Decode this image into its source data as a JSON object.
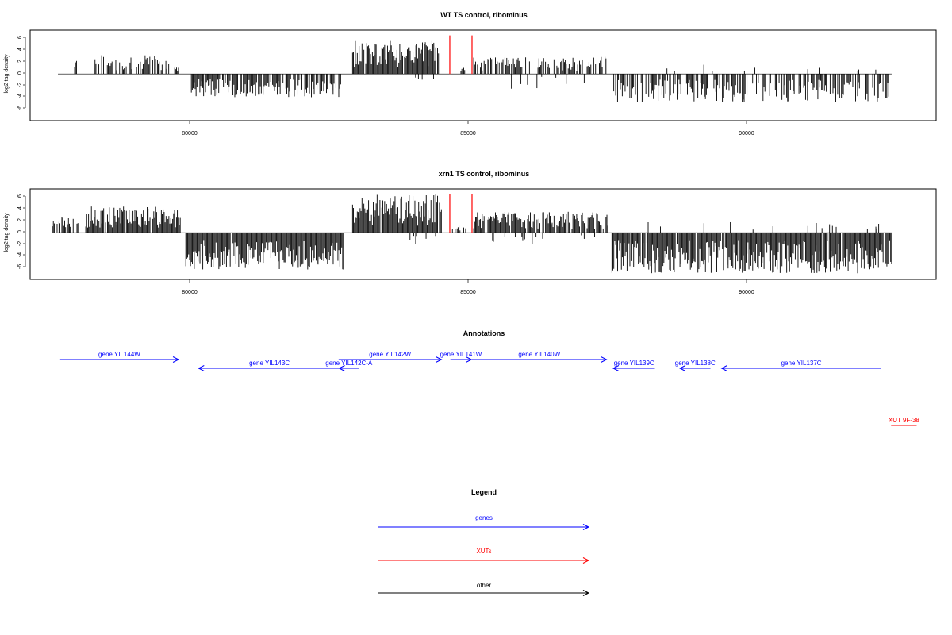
{
  "panels": [
    {
      "title": "WT TS control, ribominus",
      "ylabel": "log2 tag density",
      "xlim": [
        77500,
        93800
      ],
      "ylim": [
        -8,
        7.5
      ],
      "yticks": [
        "6",
        "4",
        "2",
        "0",
        "-2",
        "-4",
        "-6"
      ],
      "xticks": [
        "80000",
        "85000",
        "90000"
      ]
    },
    {
      "title": "xrn1 TS control, ribominus",
      "ylabel": "log2 tag density",
      "xlim": [
        77500,
        93800
      ],
      "ylim": [
        -8,
        7.5
      ],
      "yticks": [
        "6",
        "4",
        "2",
        "0",
        "-2",
        "-4",
        "-6"
      ],
      "xticks": [
        "80000",
        "85000",
        "90000"
      ]
    }
  ],
  "annotations": {
    "title": "Annotations",
    "features": [
      {
        "label": "gene YIL144W",
        "start": 78040,
        "end": 80170,
        "strand": "+",
        "row": 0,
        "color": "#0000ff"
      },
      {
        "label": "gene YIL143C",
        "start": 80530,
        "end": 83080,
        "strand": "-",
        "row": 1,
        "color": "#0000ff"
      },
      {
        "label": "gene YIL142C-A",
        "start": 83060,
        "end": 83410,
        "strand": "-",
        "row": 1,
        "color": "#0000ff"
      },
      {
        "label": "gene YIL142W",
        "start": 83050,
        "end": 84900,
        "strand": "+",
        "row": 0,
        "color": "#0000ff"
      },
      {
        "label": "gene YIL141W",
        "start": 85060,
        "end": 85440,
        "strand": "+",
        "row": 0,
        "color": "#0000ff"
      },
      {
        "label": "gene YIL140W",
        "start": 85450,
        "end": 87870,
        "strand": "+",
        "row": 0,
        "color": "#0000ff"
      },
      {
        "label": "gene YIL139C",
        "start": 87990,
        "end": 88740,
        "strand": "-",
        "row": 1,
        "color": "#0000ff"
      },
      {
        "label": "gene YIL138C",
        "start": 89190,
        "end": 89740,
        "strand": "-",
        "row": 1,
        "color": "#0000ff"
      },
      {
        "label": "gene YIL137C",
        "start": 89940,
        "end": 92810,
        "strand": "-",
        "row": 1,
        "color": "#0000ff"
      },
      {
        "label": "XUT 9F-38",
        "start": 92990,
        "end": 93450,
        "strand": "none",
        "row": 2,
        "color": "#ff0000"
      }
    ]
  },
  "legend": {
    "title": "Legend",
    "items": [
      {
        "label": "genes",
        "color": "#0000ff"
      },
      {
        "label": "XUTs",
        "color": "#ff0000"
      },
      {
        "label": "other",
        "color": "#000000"
      }
    ]
  },
  "chart_data": [
    {
      "type": "bar",
      "title": "WT TS control, ribominus",
      "ylabel": "log2 tag density",
      "xlabel": "",
      "xlim": [
        77500,
        93800
      ],
      "ylim": [
        -8,
        7.5
      ],
      "markers": [
        {
          "x": 85050,
          "ymin": 0,
          "ymax": 6.6,
          "color": "#ff0000"
        },
        {
          "x": 85450,
          "ymin": 0,
          "ymax": 6.6,
          "color": "#ff0000"
        }
      ],
      "regions": [
        {
          "start": 78300,
          "end": 78350,
          "sign": 1,
          "amp": 2.4,
          "density": 1,
          "seed": 1
        },
        {
          "start": 78650,
          "end": 80000,
          "sign": 1,
          "amp": 3.2,
          "density": 0.55,
          "seed": 2
        },
        {
          "start": 80100,
          "end": 80200,
          "sign": 1,
          "amp": 1.1,
          "density": 0.5,
          "seed": 3
        },
        {
          "start": 80400,
          "end": 83100,
          "sign": -1,
          "amp": 4.0,
          "density": 0.8,
          "seed": 4
        },
        {
          "start": 83300,
          "end": 84850,
          "sign": 1,
          "amp": 5.7,
          "density": 0.95,
          "seed": 5
        },
        {
          "start": 84400,
          "end": 84800,
          "sign": -1,
          "amp": 1.0,
          "density": 0.2,
          "seed": 6
        },
        {
          "start": 85250,
          "end": 85320,
          "sign": 1,
          "amp": 1.5,
          "density": 1,
          "seed": 7
        },
        {
          "start": 85480,
          "end": 87900,
          "sign": 1,
          "amp": 3.0,
          "density": 0.6,
          "seed": 8
        },
        {
          "start": 85700,
          "end": 87600,
          "sign": -1,
          "amp": 2.6,
          "density": 0.08,
          "seed": 9
        },
        {
          "start": 88000,
          "end": 92950,
          "sign": -1,
          "amp": 4.8,
          "density": 0.6,
          "seed": 10
        },
        {
          "start": 88600,
          "end": 92800,
          "sign": 1,
          "amp": 2.0,
          "density": 0.05,
          "seed": 11
        }
      ]
    },
    {
      "type": "bar",
      "title": "xrn1 TS control, ribominus",
      "ylabel": "log2 tag density",
      "xlabel": "",
      "xlim": [
        77500,
        93800
      ],
      "ylim": [
        -8,
        7.5
      ],
      "markers": [
        {
          "x": 85050,
          "ymin": 0,
          "ymax": 6.6,
          "color": "#ff0000"
        },
        {
          "x": 85450,
          "ymin": 0,
          "ymax": 6.6,
          "color": "#ff0000"
        }
      ],
      "regions": [
        {
          "start": 77900,
          "end": 78400,
          "sign": 1,
          "amp": 2.6,
          "density": 0.7,
          "seed": 21
        },
        {
          "start": 78500,
          "end": 80200,
          "sign": 1,
          "amp": 4.5,
          "density": 0.95,
          "seed": 22
        },
        {
          "start": 80300,
          "end": 83150,
          "sign": -1,
          "amp": 6.5,
          "density": 0.98,
          "seed": 23
        },
        {
          "start": 83300,
          "end": 84900,
          "sign": 1,
          "amp": 6.6,
          "density": 0.98,
          "seed": 24
        },
        {
          "start": 84300,
          "end": 84900,
          "sign": -1,
          "amp": 2.0,
          "density": 0.15,
          "seed": 25
        },
        {
          "start": 85080,
          "end": 85400,
          "sign": 1,
          "amp": 1.4,
          "density": 0.4,
          "seed": 26
        },
        {
          "start": 85480,
          "end": 87900,
          "sign": 1,
          "amp": 3.6,
          "density": 0.9,
          "seed": 27
        },
        {
          "start": 85700,
          "end": 87700,
          "sign": -1,
          "amp": 2.0,
          "density": 0.12,
          "seed": 28
        },
        {
          "start": 87950,
          "end": 93000,
          "sign": -1,
          "amp": 7.0,
          "density": 0.95,
          "seed": 29
        },
        {
          "start": 88500,
          "end": 92800,
          "sign": 1,
          "amp": 1.8,
          "density": 0.08,
          "seed": 30
        }
      ]
    }
  ]
}
